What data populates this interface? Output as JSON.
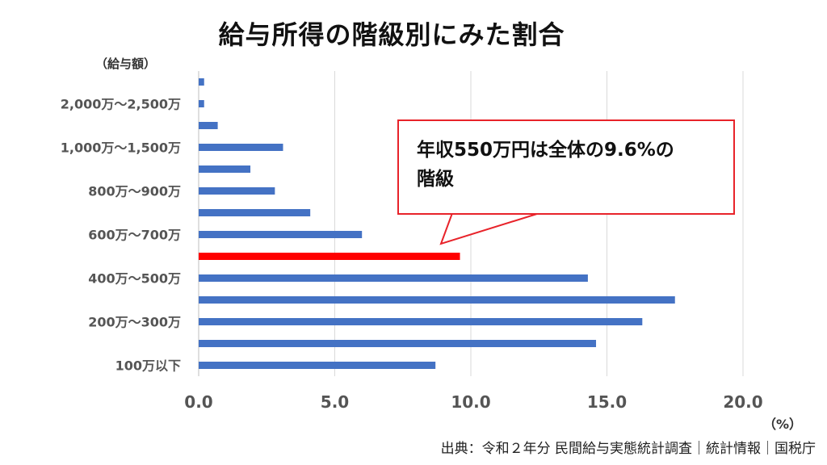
{
  "title": "給与所得の階級別にみた割合",
  "source": "出典：令和２年分 民間給与実態統計調査｜統計情報｜国税庁",
  "callout": {
    "line1": "年収550万円は全体の9.6%の",
    "line2": "階級"
  },
  "colors": {
    "bar": "#4472c4",
    "highlight": "#ff0000",
    "callout_border": "#e8232a"
  },
  "chart_data": {
    "type": "bar",
    "orientation": "horizontal",
    "title": "給与所得の階級別にみた割合",
    "ylabel": "（給与額）",
    "xlabel": "（%）",
    "xlim": [
      0,
      20
    ],
    "xticks": [
      "0.0",
      "5.0",
      "10.0",
      "15.0",
      "20.0"
    ],
    "grid": true,
    "categories_top_to_bottom": [
      "",
      "2,000万～2,500万",
      "",
      "1,000万～1,500万",
      "",
      "800万～900万",
      "",
      "600万～700万",
      "",
      "400万～500万",
      "",
      "200万～300万",
      "",
      "100万以下"
    ],
    "values_top_to_bottom": [
      0.2,
      0.2,
      0.7,
      3.1,
      1.9,
      2.8,
      4.1,
      6.0,
      9.6,
      14.3,
      17.5,
      16.3,
      14.6,
      8.7
    ],
    "highlight_index": 8
  }
}
